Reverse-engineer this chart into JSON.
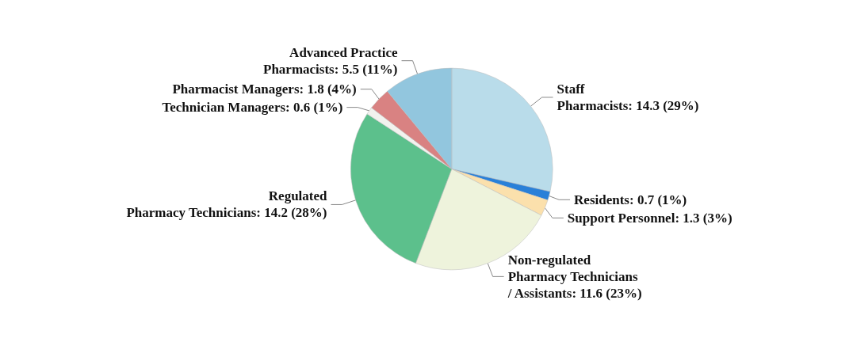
{
  "chart_data": {
    "type": "pie",
    "categories": [
      "Staff\nPharmacists",
      "Residents",
      "Support Personnel",
      "Non-regulated\nPharmacy Technicians\n/ Assistants",
      "Regulated\nPharmacy Technicians",
      "Technician Managers",
      "Pharmacist Managers",
      "Advanced Practice\nPharmacists"
    ],
    "values": [
      14.3,
      0.7,
      1.3,
      11.6,
      14.2,
      0.6,
      1.8,
      5.5
    ],
    "value_labels": [
      "14.3 (29%)",
      "0.7 (1%)",
      "1.3 (3%)",
      "11.6 (23%)",
      "14.2 (28%)",
      "0.6 (1%)",
      "1.8 (4%)",
      "5.5 (11%)"
    ],
    "colors": [
      "#b9dcea",
      "#2a80d8",
      "#fbe0ac",
      "#eef3dc",
      "#5cc08c",
      "#f2f2ee",
      "#d98282",
      "#92c6de"
    ]
  }
}
